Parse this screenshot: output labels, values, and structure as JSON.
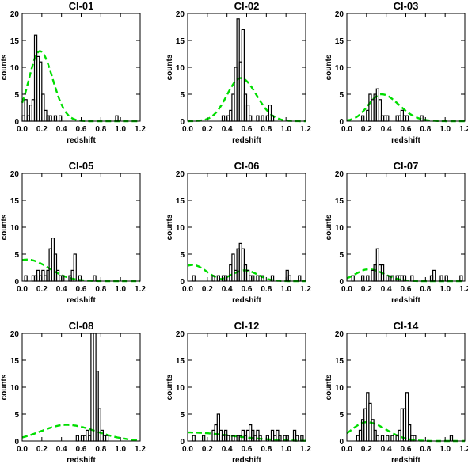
{
  "chart_data": [
    {
      "type": "histogram",
      "title": "Cl-01",
      "xlabel": "redshift",
      "ylabel": "counts",
      "xlim": [
        0,
        1.2
      ],
      "ylim": [
        0,
        20
      ],
      "xticks": [
        "0.0",
        "0.2",
        "0.4",
        "0.6",
        "0.8",
        "1.0",
        "1.2"
      ],
      "yticks": [
        "0",
        "5",
        "10",
        "15",
        "20"
      ],
      "bin_width": 0.025,
      "bins": [
        [
          0.0,
          1
        ],
        [
          0.025,
          4
        ],
        [
          0.05,
          1
        ],
        [
          0.075,
          3
        ],
        [
          0.1,
          4
        ],
        [
          0.125,
          16
        ],
        [
          0.15,
          12
        ],
        [
          0.175,
          11
        ],
        [
          0.2,
          5
        ],
        [
          0.225,
          2
        ],
        [
          0.25,
          1
        ],
        [
          0.275,
          1
        ],
        [
          0.3,
          0
        ],
        [
          0.325,
          1
        ],
        [
          0.35,
          0
        ],
        [
          0.375,
          1
        ],
        [
          0.95,
          1
        ]
      ],
      "model_curve": {
        "color": "#00dd00",
        "peak": 13,
        "center": 0.18,
        "width": 0.11,
        "width_high": 0.13
      }
    },
    {
      "type": "histogram",
      "title": "Cl-02",
      "xlabel": "redshift",
      "ylabel": "counts",
      "xlim": [
        0,
        1.2
      ],
      "ylim": [
        0,
        20
      ],
      "xticks": [
        "0.0",
        "0.2",
        "0.4",
        "0.6",
        "0.8",
        "1.0",
        "1.2"
      ],
      "yticks": [
        "0",
        "5",
        "10",
        "15",
        "20"
      ],
      "bin_width": 0.025,
      "bins": [
        [
          0.35,
          1
        ],
        [
          0.4,
          1
        ],
        [
          0.425,
          2
        ],
        [
          0.45,
          5
        ],
        [
          0.475,
          10
        ],
        [
          0.5,
          19
        ],
        [
          0.525,
          11
        ],
        [
          0.55,
          17
        ],
        [
          0.575,
          5
        ],
        [
          0.6,
          3
        ],
        [
          0.625,
          1
        ],
        [
          0.65,
          0
        ],
        [
          0.675,
          0
        ],
        [
          0.7,
          1
        ],
        [
          0.725,
          0
        ],
        [
          0.75,
          1
        ],
        [
          0.8,
          1
        ],
        [
          0.825,
          3
        ],
        [
          0.85,
          1
        ]
      ],
      "model_curve": {
        "color": "#00dd00",
        "peak": 8,
        "center": 0.54,
        "width": 0.14,
        "width_high": 0.16
      }
    },
    {
      "type": "histogram",
      "title": "Cl-03",
      "xlabel": "redshift",
      "ylabel": "counts",
      "xlim": [
        0,
        1.2
      ],
      "ylim": [
        0,
        20
      ],
      "xticks": [
        "0.0",
        "0.2",
        "0.4",
        "0.6",
        "0.8",
        "1.0",
        "1.2"
      ],
      "yticks": [
        "0",
        "5",
        "10",
        "15",
        "20"
      ],
      "bin_width": 0.025,
      "bins": [
        [
          0.15,
          1
        ],
        [
          0.2,
          2
        ],
        [
          0.225,
          5
        ],
        [
          0.25,
          4
        ],
        [
          0.275,
          5
        ],
        [
          0.3,
          6
        ],
        [
          0.325,
          4
        ],
        [
          0.35,
          1
        ],
        [
          0.375,
          1
        ],
        [
          0.4,
          1
        ],
        [
          0.45,
          0
        ],
        [
          0.5,
          1
        ],
        [
          0.525,
          1
        ],
        [
          0.55,
          2
        ],
        [
          0.575,
          1
        ],
        [
          0.6,
          1
        ],
        [
          0.65,
          0
        ],
        [
          0.75,
          1
        ]
      ],
      "model_curve": {
        "color": "#00dd00",
        "peak": 5,
        "center": 0.35,
        "width": 0.13,
        "width_high": 0.18
      }
    },
    {
      "type": "histogram",
      "title": "Cl-05",
      "xlabel": "redshift",
      "ylabel": "counts",
      "xlim": [
        0,
        1.2
      ],
      "ylim": [
        0,
        20
      ],
      "xticks": [
        "0.0",
        "0.2",
        "0.4",
        "0.6",
        "0.8",
        "1.0",
        "1.2"
      ],
      "yticks": [
        "0",
        "5",
        "10",
        "15",
        "20"
      ],
      "bin_width": 0.025,
      "bins": [
        [
          0.025,
          1
        ],
        [
          0.1,
          1
        ],
        [
          0.125,
          1
        ],
        [
          0.15,
          2
        ],
        [
          0.175,
          1
        ],
        [
          0.2,
          2
        ],
        [
          0.225,
          1
        ],
        [
          0.25,
          2
        ],
        [
          0.275,
          6
        ],
        [
          0.3,
          8
        ],
        [
          0.325,
          5
        ],
        [
          0.35,
          2
        ],
        [
          0.375,
          1
        ],
        [
          0.4,
          1
        ],
        [
          0.475,
          1
        ],
        [
          0.5,
          2
        ],
        [
          0.525,
          5
        ],
        [
          0.55,
          0
        ],
        [
          0.575,
          1
        ],
        [
          0.725,
          1
        ]
      ],
      "model_curve": {
        "color": "#00dd00",
        "peak": 4,
        "center": 0.05,
        "width": 0.22,
        "width_high": 0.22
      }
    },
    {
      "type": "histogram",
      "title": "Cl-06",
      "xlabel": "redshift",
      "ylabel": "counts",
      "xlim": [
        0,
        1.2
      ],
      "ylim": [
        0,
        20
      ],
      "xticks": [
        "0.0",
        "0.2",
        "0.4",
        "0.6",
        "0.8",
        "1.0",
        "1.2"
      ],
      "yticks": [
        "0",
        "5",
        "10",
        "15",
        "20"
      ],
      "bin_width": 0.025,
      "bins": [
        [
          0.05,
          1
        ],
        [
          0.25,
          1
        ],
        [
          0.3,
          1
        ],
        [
          0.35,
          1
        ],
        [
          0.375,
          1
        ],
        [
          0.425,
          3
        ],
        [
          0.45,
          5
        ],
        [
          0.475,
          2
        ],
        [
          0.5,
          6
        ],
        [
          0.525,
          7
        ],
        [
          0.55,
          6
        ],
        [
          0.575,
          3
        ],
        [
          0.6,
          2
        ],
        [
          0.625,
          1
        ],
        [
          0.65,
          1
        ],
        [
          0.7,
          1
        ],
        [
          0.75,
          1
        ],
        [
          0.85,
          1
        ],
        [
          1.0,
          2
        ],
        [
          1.025,
          1
        ],
        [
          1.125,
          1
        ]
      ],
      "model_curve": {
        "color": "#00dd00",
        "peak": 3,
        "center": 0.05,
        "width": 0.15,
        "width_high": 0.14,
        "peak2": 2,
        "center2": 0.58,
        "width2": 0.13
      }
    },
    {
      "type": "histogram",
      "title": "Cl-07",
      "xlabel": "redshift",
      "ylabel": "counts",
      "xlim": [
        0,
        1.2
      ],
      "ylim": [
        0,
        20
      ],
      "xticks": [
        "0.0",
        "0.2",
        "0.4",
        "0.6",
        "0.8",
        "1.0",
        "1.2"
      ],
      "yticks": [
        "0",
        "5",
        "10",
        "15",
        "20"
      ],
      "bin_width": 0.025,
      "bins": [
        [
          0.05,
          1
        ],
        [
          0.15,
          1
        ],
        [
          0.2,
          1
        ],
        [
          0.25,
          2
        ],
        [
          0.275,
          3
        ],
        [
          0.3,
          6
        ],
        [
          0.325,
          3
        ],
        [
          0.35,
          3
        ],
        [
          0.4,
          1
        ],
        [
          0.45,
          1
        ],
        [
          0.5,
          1
        ],
        [
          0.525,
          1
        ],
        [
          0.55,
          1
        ],
        [
          0.575,
          1
        ],
        [
          0.6,
          0
        ],
        [
          0.65,
          1
        ],
        [
          0.85,
          1
        ],
        [
          0.875,
          2
        ],
        [
          0.95,
          1
        ],
        [
          1.0,
          1
        ],
        [
          1.15,
          1
        ]
      ],
      "model_curve": {
        "color": "#00dd00",
        "peak": 2.2,
        "center": 0.22,
        "width": 0.13,
        "width_high": 0.16
      }
    },
    {
      "type": "histogram",
      "title": "Cl-08",
      "xlabel": "redshift",
      "ylabel": "counts",
      "xlim": [
        0,
        1.2
      ],
      "ylim": [
        0,
        20
      ],
      "xticks": [
        "0.0",
        "0.2",
        "0.4",
        "0.6",
        "0.8",
        "1.0",
        "1.2"
      ],
      "yticks": [
        "0",
        "5",
        "10",
        "15",
        "20"
      ],
      "bin_width": 0.025,
      "bins": [
        [
          0.55,
          1
        ],
        [
          0.575,
          0
        ],
        [
          0.6,
          1
        ],
        [
          0.625,
          1
        ],
        [
          0.65,
          2
        ],
        [
          0.675,
          1
        ],
        [
          0.7,
          20
        ],
        [
          0.725,
          20
        ],
        [
          0.75,
          13
        ],
        [
          0.775,
          6
        ],
        [
          0.8,
          2
        ],
        [
          0.825,
          1
        ],
        [
          0.85,
          1
        ]
      ],
      "model_curve": {
        "color": "#00dd00",
        "peak": 3,
        "center": 0.45,
        "width": 0.26,
        "width_high": 0.3
      }
    },
    {
      "type": "histogram",
      "title": "Cl-12",
      "xlabel": "redshift",
      "ylabel": "counts",
      "xlim": [
        0,
        1.2
      ],
      "ylim": [
        0,
        20
      ],
      "xticks": [
        "0.0",
        "0.2",
        "0.4",
        "0.6",
        "0.8",
        "1.0",
        "1.2"
      ],
      "yticks": [
        "0",
        "5",
        "10",
        "15",
        "20"
      ],
      "bin_width": 0.025,
      "bins": [
        [
          0.05,
          1
        ],
        [
          0.15,
          1
        ],
        [
          0.25,
          2
        ],
        [
          0.275,
          3
        ],
        [
          0.3,
          5
        ],
        [
          0.325,
          2
        ],
        [
          0.35,
          1
        ],
        [
          0.375,
          2
        ],
        [
          0.4,
          1
        ],
        [
          0.45,
          1
        ],
        [
          0.5,
          1
        ],
        [
          0.525,
          1
        ],
        [
          0.55,
          2
        ],
        [
          0.575,
          1
        ],
        [
          0.6,
          2
        ],
        [
          0.625,
          3
        ],
        [
          0.65,
          2
        ],
        [
          0.675,
          1
        ],
        [
          0.7,
          2
        ],
        [
          0.725,
          1
        ],
        [
          0.8,
          1
        ],
        [
          0.85,
          2
        ],
        [
          0.875,
          1
        ],
        [
          0.9,
          2
        ],
        [
          0.925,
          1
        ],
        [
          0.975,
          1
        ],
        [
          1.0,
          1
        ],
        [
          1.075,
          2
        ],
        [
          1.1,
          1
        ],
        [
          1.15,
          1
        ]
      ],
      "model_curve": {
        "color": "#00dd00",
        "peak": 1.6,
        "center": 0.0,
        "width": 0.45,
        "width_high": 0.45
      }
    },
    {
      "type": "histogram",
      "title": "Cl-14",
      "xlabel": "redshift",
      "ylabel": "counts",
      "xlim": [
        0,
        1.2
      ],
      "ylim": [
        0,
        20
      ],
      "xticks": [
        "0.0",
        "0.2",
        "0.4",
        "0.6",
        "0.8",
        "1.0",
        "1.2"
      ],
      "yticks": [
        "0",
        "5",
        "10",
        "15",
        "20"
      ],
      "bin_width": 0.025,
      "bins": [
        [
          0.1,
          1
        ],
        [
          0.125,
          2
        ],
        [
          0.15,
          4
        ],
        [
          0.175,
          6
        ],
        [
          0.2,
          9
        ],
        [
          0.225,
          7
        ],
        [
          0.25,
          4
        ],
        [
          0.275,
          2
        ],
        [
          0.3,
          1
        ],
        [
          0.35,
          1
        ],
        [
          0.4,
          1
        ],
        [
          0.45,
          1
        ],
        [
          0.5,
          1
        ],
        [
          0.525,
          2
        ],
        [
          0.55,
          6
        ],
        [
          0.575,
          6
        ],
        [
          0.6,
          9
        ],
        [
          0.625,
          3
        ],
        [
          0.65,
          1
        ],
        [
          0.675,
          1
        ],
        [
          1.05,
          1
        ]
      ],
      "model_curve": {
        "color": "#00dd00",
        "peak": 3.5,
        "center": 0.2,
        "width": 0.15,
        "width_high": 0.2
      }
    }
  ]
}
